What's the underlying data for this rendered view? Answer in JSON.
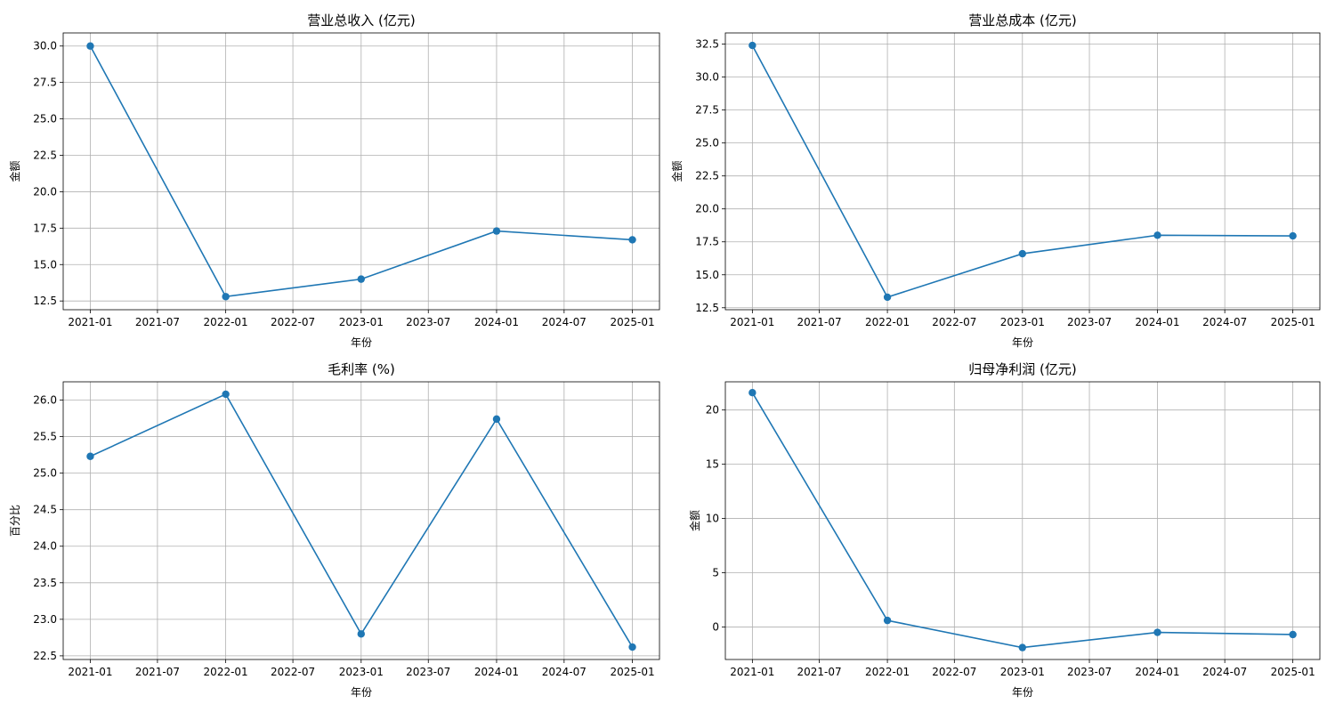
{
  "chart_data": [
    {
      "type": "line",
      "title": "营业总收入 (亿元)",
      "xlabel": "年份",
      "ylabel": "金额",
      "x": [
        "2021-01",
        "2022-01",
        "2023-01",
        "2024-01",
        "2025-01"
      ],
      "values": [
        30.0,
        12.8,
        14.0,
        17.3,
        16.7
      ],
      "xticks": [
        "2021-01",
        "2021-07",
        "2022-01",
        "2022-07",
        "2023-01",
        "2023-07",
        "2024-01",
        "2024-07",
        "2025-01"
      ],
      "yticks": [
        "12.5",
        "15.0",
        "17.5",
        "20.0",
        "22.5",
        "25.0",
        "27.5",
        "30.0"
      ],
      "ylim": [
        11.9,
        30.9
      ],
      "grid": true,
      "color": "#1f77b4"
    },
    {
      "type": "line",
      "title": "营业总成本 (亿元)",
      "xlabel": "年份",
      "ylabel": "金额",
      "x": [
        "2021-01",
        "2022-01",
        "2023-01",
        "2024-01",
        "2025-01"
      ],
      "values": [
        32.4,
        13.3,
        16.6,
        18.0,
        17.95
      ],
      "xticks": [
        "2021-01",
        "2021-07",
        "2022-01",
        "2022-07",
        "2023-01",
        "2023-07",
        "2024-01",
        "2024-07",
        "2025-01"
      ],
      "yticks": [
        "12.5",
        "15.0",
        "17.5",
        "20.0",
        "22.5",
        "25.0",
        "27.5",
        "30.0",
        "32.5"
      ],
      "ylim": [
        12.35,
        33.35
      ],
      "grid": true,
      "color": "#1f77b4"
    },
    {
      "type": "line",
      "title": "毛利率 (%)",
      "xlabel": "年份",
      "ylabel": "百分比",
      "x": [
        "2021-01",
        "2022-01",
        "2023-01",
        "2024-01",
        "2025-01"
      ],
      "values": [
        25.23,
        26.08,
        22.8,
        25.74,
        22.62
      ],
      "xticks": [
        "2021-01",
        "2021-07",
        "2022-01",
        "2022-07",
        "2023-01",
        "2023-07",
        "2024-01",
        "2024-07",
        "2025-01"
      ],
      "yticks": [
        "22.5",
        "23.0",
        "23.5",
        "24.0",
        "24.5",
        "25.0",
        "25.5",
        "26.0"
      ],
      "ylim": [
        22.45,
        26.25
      ],
      "grid": true,
      "color": "#1f77b4"
    },
    {
      "type": "line",
      "title": "归母净利润 (亿元)",
      "xlabel": "年份",
      "ylabel": "金额",
      "x": [
        "2021-01",
        "2022-01",
        "2023-01",
        "2024-01",
        "2025-01"
      ],
      "values": [
        21.6,
        0.6,
        -1.9,
        -0.5,
        -0.7
      ],
      "xticks": [
        "2021-01",
        "2021-07",
        "2022-01",
        "2022-07",
        "2023-01",
        "2023-07",
        "2024-01",
        "2024-07",
        "2025-01"
      ],
      "yticks": [
        "0",
        "5",
        "10",
        "15",
        "20"
      ],
      "ylim": [
        -3.0,
        22.6
      ],
      "grid": true,
      "color": "#1f77b4"
    }
  ]
}
